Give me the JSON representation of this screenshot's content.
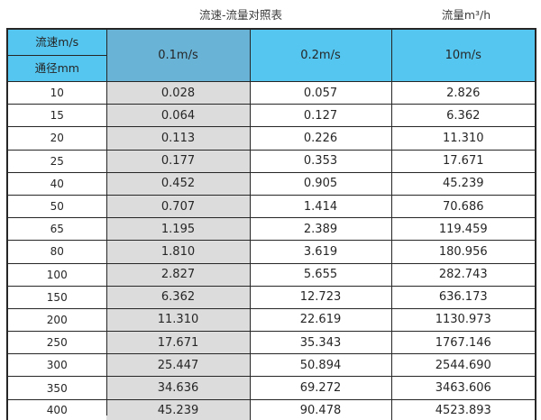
{
  "header": {
    "title": "流速-流量对照表",
    "unit": "流量m³/h"
  },
  "table": {
    "corner_top": "流速m/s",
    "corner_bottom": "通径mm"
  },
  "chart_data": {
    "type": "table",
    "title": "流速-流量对照表",
    "right_caption": "流量m³/h",
    "corner_labels": [
      "流速m/s",
      "通径mm"
    ],
    "row_key_label": "通径mm",
    "columns": [
      "0.1m/s",
      "0.2m/s",
      "10m/s"
    ],
    "rows": [
      {
        "diameter": "10",
        "values": [
          "0.028",
          "0.057",
          "2.826"
        ]
      },
      {
        "diameter": "15",
        "values": [
          "0.064",
          "0.127",
          "6.362"
        ]
      },
      {
        "diameter": "20",
        "values": [
          "0.113",
          "0.226",
          "11.310"
        ]
      },
      {
        "diameter": "25",
        "values": [
          "0.177",
          "0.353",
          "17.671"
        ]
      },
      {
        "diameter": "40",
        "values": [
          "0.452",
          "0.905",
          "45.239"
        ]
      },
      {
        "diameter": "50",
        "values": [
          "0.707",
          "1.414",
          "70.686"
        ]
      },
      {
        "diameter": "65",
        "values": [
          "1.195",
          "2.389",
          "119.459"
        ]
      },
      {
        "diameter": "80",
        "values": [
          "1.810",
          "3.619",
          "180.956"
        ]
      },
      {
        "diameter": "100",
        "values": [
          "2.827",
          "5.655",
          "282.743"
        ]
      },
      {
        "diameter": "150",
        "values": [
          "6.362",
          "12.723",
          "636.173"
        ]
      },
      {
        "diameter": "200",
        "values": [
          "11.310",
          "22.619",
          "1130.973"
        ]
      },
      {
        "diameter": "250",
        "values": [
          "17.671",
          "35.343",
          "1767.146"
        ]
      },
      {
        "diameter": "300",
        "values": [
          "25.447",
          "50.894",
          "2544.690"
        ]
      },
      {
        "diameter": "350",
        "values": [
          "34.636",
          "69.272",
          "3463.606"
        ]
      },
      {
        "diameter": "400",
        "values": [
          "45.239",
          "90.478",
          "4523.893"
        ]
      }
    ]
  },
  "colors": {
    "header_blue": "#54c6f0",
    "header_blue_dark": "#69b3d7",
    "shaded_cell": "#dcdcdc",
    "grid_line": "#262626",
    "text": "#262626"
  }
}
